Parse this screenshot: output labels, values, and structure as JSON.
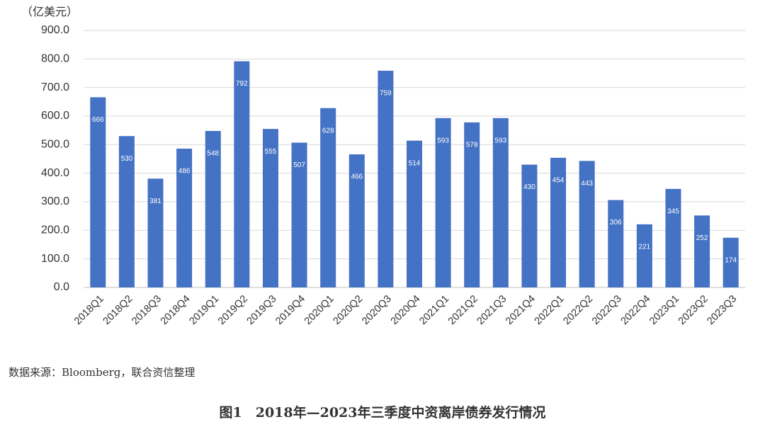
{
  "chart_data": {
    "type": "bar",
    "title": "图1　2018年—2023年三季度中资离岸债券发行情况",
    "y_axis_label": "（亿美元）",
    "source": "数据来源：Bloomberg，联合资信整理",
    "categories": [
      "2018Q1",
      "2018Q2",
      "2018Q3",
      "2018Q4",
      "2019Q1",
      "2019Q2",
      "2019Q3",
      "2019Q4",
      "2020Q1",
      "2020Q2",
      "2020Q3",
      "2020Q4",
      "2021Q1",
      "2021Q2",
      "2021Q3",
      "2021Q4",
      "2022Q1",
      "2022Q2",
      "2022Q3",
      "2022Q4",
      "2023Q1",
      "2023Q2",
      "2023Q3"
    ],
    "values": [
      666,
      530,
      381,
      486,
      548,
      792,
      555,
      507,
      628,
      466,
      759,
      514,
      593,
      578,
      593,
      430,
      454,
      443,
      306,
      221,
      345,
      252,
      174
    ],
    "color": "#4472c4",
    "ylim": [
      0,
      900
    ],
    "yticks": [
      {
        "value": 0,
        "label": "0.0"
      },
      {
        "value": 100,
        "label": "100.0"
      },
      {
        "value": 200,
        "label": "200.0"
      },
      {
        "value": 300,
        "label": "300.0"
      },
      {
        "value": 400,
        "label": "400.0"
      },
      {
        "value": 500,
        "label": "500.0"
      },
      {
        "value": 600,
        "label": "600.0"
      },
      {
        "value": 700,
        "label": "700.0"
      },
      {
        "value": 800,
        "label": "800.0"
      },
      {
        "value": 900,
        "label": "900.0"
      }
    ],
    "grid": true
  }
}
